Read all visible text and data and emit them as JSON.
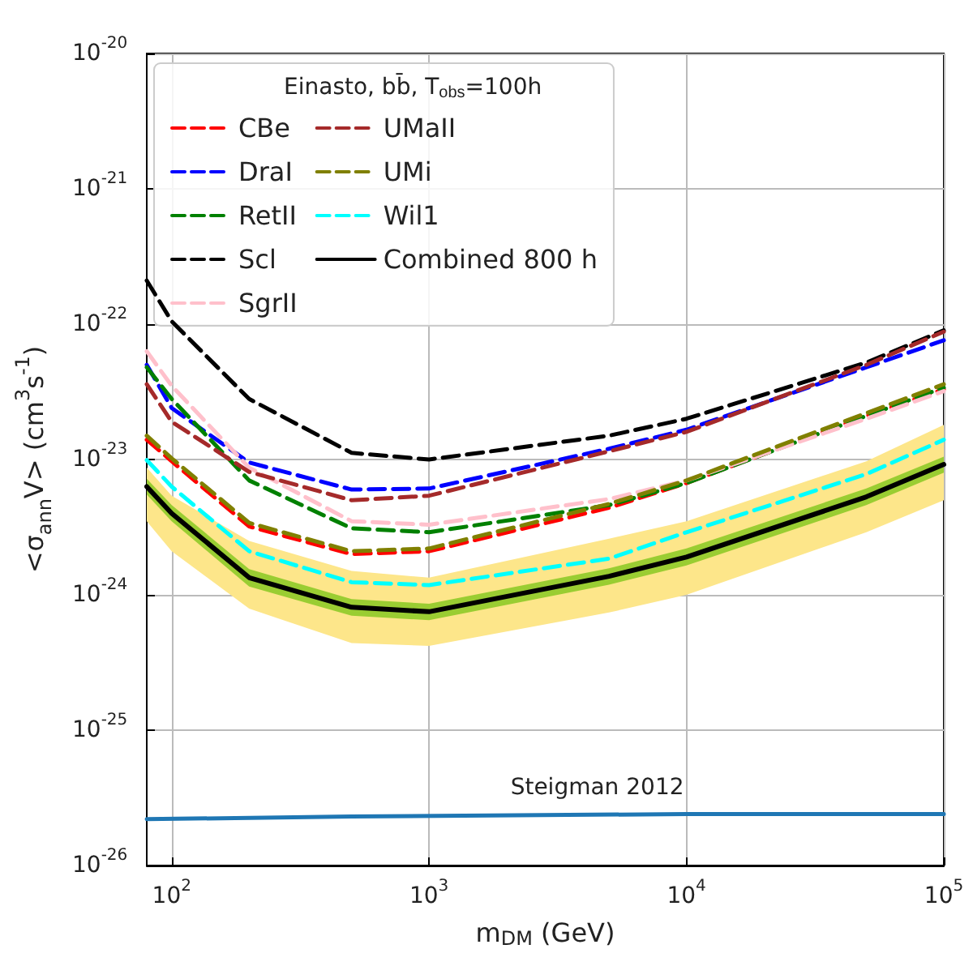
{
  "chart_data": {
    "type": "line",
    "xlabel": "m$_{DM}$ (GeV)",
    "ylabel": "<σ$_{ann}$V> (cm$^{3}$s$^{-1}$)",
    "legend_title": "Einasto, bb̄, T$_{obs}$=100h",
    "log": "xy",
    "grid": true,
    "legend": "top left",
    "marker": "none",
    "line_style": "dashed",
    "x": [
      80,
      100,
      200,
      500,
      1000,
      5000,
      10000,
      50000,
      100000
    ],
    "xlim": [
      80,
      100000
    ],
    "xticks": [
      {
        "value": 100,
        "label": "10$^{2}$"
      },
      {
        "value": 1000,
        "label": "10$^{3}$"
      },
      {
        "value": 10000,
        "label": "10$^{4}$"
      },
      {
        "value": 100000,
        "label": "10$^{5}$"
      }
    ],
    "ylim": [
      1e-26,
      1e-20
    ],
    "yticks": [
      {
        "value": 1e-26,
        "label": "10$^{-26}$"
      },
      {
        "value": 1e-25,
        "label": "10$^{-25}$"
      },
      {
        "value": 1e-24,
        "label": "10$^{-24}$"
      },
      {
        "value": 1e-23,
        "label": "10$^{-23}$"
      },
      {
        "value": 1e-22,
        "label": "10$^{-22}$"
      },
      {
        "value": 1e-21,
        "label": "10$^{-21}$"
      },
      {
        "value": 1e-20,
        "label": "10$^{-20}$"
      }
    ],
    "series": [
      {
        "color": "#fde68a",
        "values": [
          null,
          null,
          null,
          null,
          null,
          null,
          null,
          null,
          null
        ],
        "lower": [
          3.5e-24,
          2.1e-24,
          7.9e-25,
          4.4e-25,
          4.2e-25,
          7.4e-25,
          1e-24,
          2.9e-24,
          5e-24
        ],
        "upper": [
          8.7e-24,
          5.4e-24,
          2.5e-24,
          1.5e-24,
          1.34e-24,
          2.6e-24,
          3.5e-24,
          9.7e-24,
          1.8e-23
        ]
      },
      {
        "name": "CBe",
        "color": "#ff0000",
        "values": [
          1.4e-23,
          9.7e-24,
          3.2e-24,
          2e-24,
          2.1e-24,
          4.4e-24,
          6.7e-24,
          2.1e-23,
          3.3e-23
        ]
      },
      {
        "name": "DraI",
        "color": "#0000ff",
        "values": [
          5e-23,
          2.4e-23,
          9.5e-24,
          6e-24,
          6.1e-24,
          1.2e-23,
          1.66e-23,
          4.8e-23,
          7.6e-23
        ]
      },
      {
        "name": "RetII",
        "color": "#008000",
        "values": [
          4.8e-23,
          2.8e-23,
          7e-24,
          3.1e-24,
          2.9e-24,
          4.6e-24,
          6.7e-24,
          2.1e-23,
          3.4e-23
        ]
      },
      {
        "name": "Scl",
        "color": "#000000",
        "values": [
          2.1e-22,
          1.05e-22,
          2.8e-23,
          1.12e-23,
          1e-23,
          1.5e-23,
          2e-23,
          5.2e-23,
          9e-23
        ]
      },
      {
        "name": "SgrII",
        "color": "#ffc0cb",
        "values": [
          6.3e-23,
          3.5e-23,
          8.7e-24,
          3.5e-24,
          3.3e-24,
          5.1e-24,
          7e-24,
          2e-23,
          3.2e-23
        ]
      },
      {
        "name": "UMaII",
        "color": "#a52a2a",
        "values": [
          3.6e-23,
          1.9e-23,
          8.1e-24,
          5e-24,
          5.4e-24,
          1.15e-23,
          1.6e-23,
          5e-23,
          8.8e-23
        ]
      },
      {
        "name": "UMi",
        "color": "#808000",
        "values": [
          1.5e-23,
          1.02e-23,
          3.4e-24,
          2.1e-24,
          2.2e-24,
          4.7e-24,
          7e-24,
          2.2e-23,
          3.6e-23
        ]
      },
      {
        "name": "Wil1",
        "color": "#00ffff",
        "values": [
          9.9e-24,
          6.3e-24,
          2.1e-24,
          1.24e-24,
          1.18e-24,
          1.85e-24,
          2.9e-24,
          7.8e-24,
          1.4e-23
        ]
      },
      {
        "name": "Combined 800 h",
        "color": "#000000",
        "line_style": "solid",
        "values": [
          6.3e-24,
          4e-24,
          1.34e-24,
          8.1e-25,
          7.5e-25,
          1.37e-24,
          1.9e-24,
          5.3e-24,
          9.2e-24
        ],
        "lower": [
          5.5e-24,
          3.5e-24,
          1.15e-24,
          7e-25,
          6.5e-25,
          1.19e-24,
          1.65e-24,
          4.6e-24,
          8e-24
        ],
        "upper": [
          7.2e-24,
          4.6e-24,
          1.55e-24,
          9.3e-25,
          8.6e-25,
          1.57e-24,
          2.2e-24,
          6.1e-24,
          1.05e-23
        ]
      },
      {
        "color": "#1f77b4",
        "line_style": "solid",
        "x": [
          80,
          500,
          10000,
          100000
        ],
        "values": [
          2.2e-26,
          2.3e-26,
          2.4e-26,
          2.4e-26
        ]
      }
    ],
    "annotations": [
      "Steigman 2012"
    ]
  }
}
